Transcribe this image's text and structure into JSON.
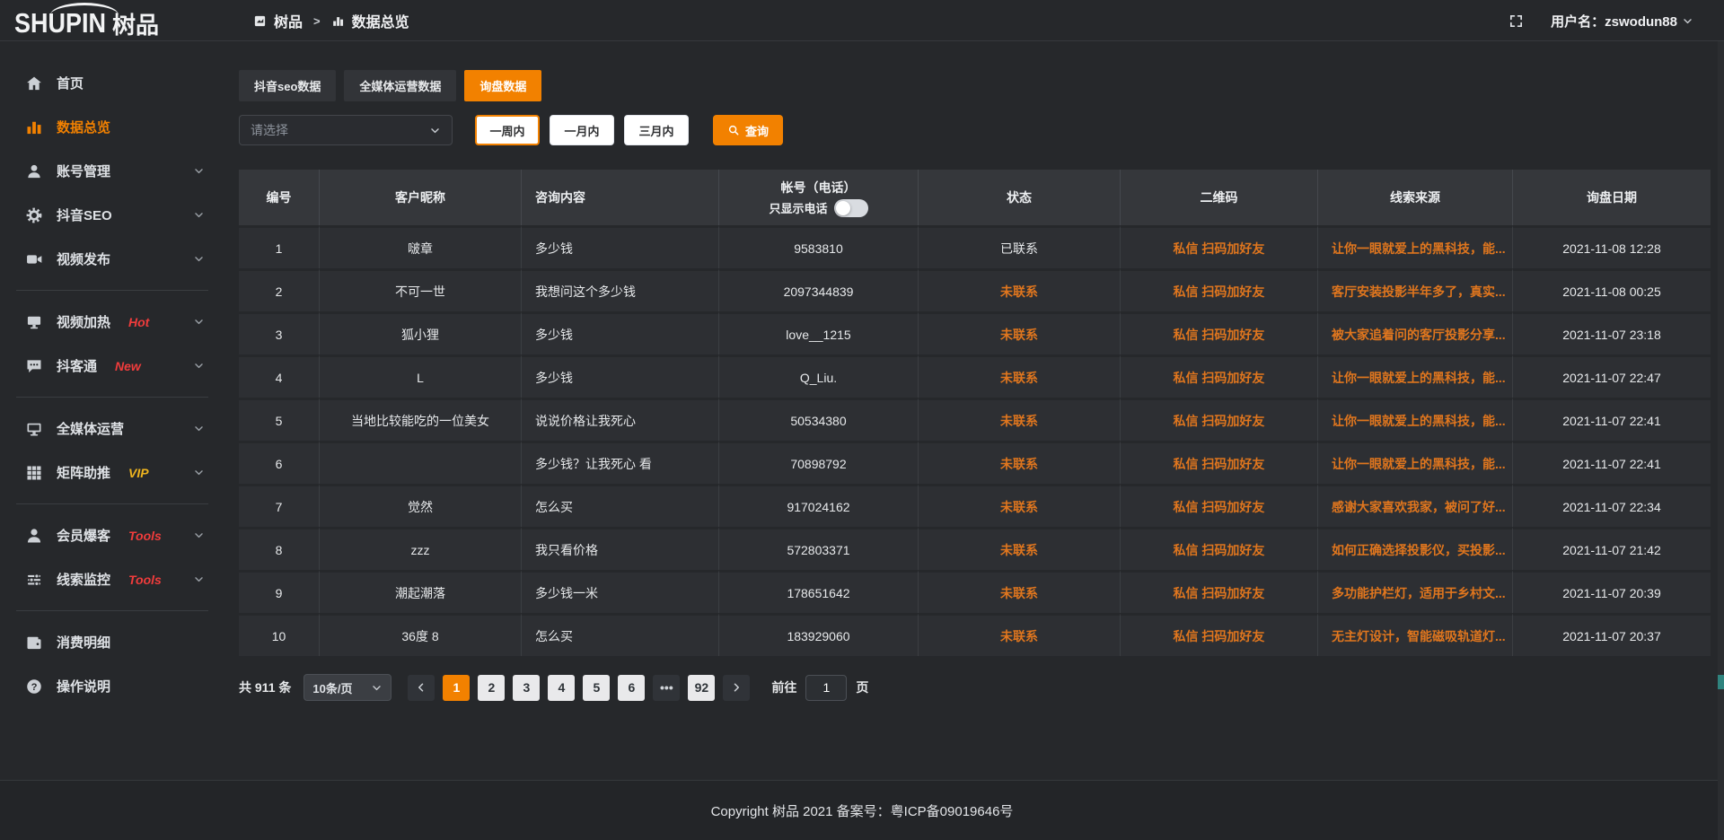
{
  "logo": {
    "latin": "SHUPIN",
    "cjk": "树品"
  },
  "header": {
    "breadcrumb": {
      "app": "树品",
      "separator": ">",
      "page": "数据总览"
    },
    "user_label": "用户名：zswodun88"
  },
  "sidebar": {
    "items": [
      {
        "id": "home",
        "icon": "home",
        "label": "首页"
      },
      {
        "id": "data-overview",
        "icon": "chart",
        "label": "数据总览",
        "active": true
      },
      {
        "id": "account-management",
        "icon": "user",
        "label": "账号管理",
        "chevron": true
      },
      {
        "id": "douyin-seo",
        "icon": "gear",
        "label": "抖音SEO",
        "chevron": true
      },
      {
        "id": "video-publish",
        "icon": "video",
        "label": "视频发布",
        "chevron": true
      },
      {
        "divider": true
      },
      {
        "id": "video-heat",
        "icon": "heat",
        "label": "视频加热",
        "badge": "Hot",
        "badge_style": "red",
        "chevron": true
      },
      {
        "id": "douketong",
        "icon": "chat",
        "label": "抖客通",
        "badge": "New",
        "badge_style": "red",
        "chevron": true
      },
      {
        "divider": true
      },
      {
        "id": "media-operation",
        "icon": "screen",
        "label": "全媒体运营",
        "chevron": true
      },
      {
        "id": "matrix-boost",
        "icon": "grid",
        "label": "矩阵助推",
        "badge": "VIP",
        "badge_style": "gold",
        "chevron": true
      },
      {
        "divider": true
      },
      {
        "id": "member-baoke",
        "icon": "member",
        "label": "会员爆客",
        "badge": "Tools",
        "badge_style": "red",
        "chevron": true
      },
      {
        "id": "lead-monitor",
        "icon": "sliders",
        "label": "线索监控",
        "badge": "Tools",
        "badge_style": "red",
        "chevron": true
      },
      {
        "divider": true
      },
      {
        "id": "consume-detail",
        "icon": "wallet",
        "label": "消费明细"
      },
      {
        "id": "operation-guide",
        "icon": "question",
        "label": "操作说明"
      }
    ]
  },
  "tabs": [
    {
      "label": "抖音seo数据",
      "active": false
    },
    {
      "label": "全媒体运营数据",
      "active": false
    },
    {
      "label": "询盘数据",
      "active": true
    }
  ],
  "filters": {
    "select_placeholder": "请选择",
    "range_buttons": [
      {
        "label": "一周内",
        "active": true
      },
      {
        "label": "一月内",
        "active": false
      },
      {
        "label": "三月内",
        "active": false
      }
    ],
    "search_label": "查询"
  },
  "table": {
    "columns": [
      {
        "label": "编号"
      },
      {
        "label": "客户昵称"
      },
      {
        "label": "咨询内容"
      },
      {
        "label": "帐号（电话）"
      },
      {
        "label": "状态"
      },
      {
        "label": "二维码"
      },
      {
        "label": "线索来源"
      },
      {
        "label": "询盘日期"
      }
    ],
    "phone_toggle_label": "只显示电话",
    "rows": [
      {
        "no": "1",
        "nickname": "啵章",
        "content": "多少钱",
        "account": "9583810",
        "status": "已联系",
        "contacted": true,
        "qr": "私信 扫码加好友",
        "source": "让你一眼就爱上的黑科技，能...",
        "date": "2021-11-08 12:28"
      },
      {
        "no": "2",
        "nickname": "不可一世",
        "content": "我想问这个多少钱",
        "account": "2097344839",
        "status": "未联系",
        "contacted": false,
        "qr": "私信 扫码加好友",
        "source": "客厅安装投影半年多了，真实...",
        "date": "2021-11-08 00:25"
      },
      {
        "no": "3",
        "nickname": "狐小狸",
        "content": "多少钱",
        "account": "love__1215",
        "status": "未联系",
        "contacted": false,
        "qr": "私信 扫码加好友",
        "source": "被大家追着问的客厅投影分享...",
        "date": "2021-11-07 23:18"
      },
      {
        "no": "4",
        "nickname": "L",
        "content": "多少钱",
        "account": "Q_Liu.",
        "status": "未联系",
        "contacted": false,
        "qr": "私信 扫码加好友",
        "source": "让你一眼就爱上的黑科技，能...",
        "date": "2021-11-07 22:47"
      },
      {
        "no": "5",
        "nickname": "当地比较能吃的一位美女",
        "content": "说说价格让我死心",
        "account": "50534380",
        "status": "未联系",
        "contacted": false,
        "qr": "私信 扫码加好友",
        "source": "让你一眼就爱上的黑科技，能...",
        "date": "2021-11-07 22:41"
      },
      {
        "no": "6",
        "nickname": "",
        "content": "多少钱？让我死心 看",
        "account": "70898792",
        "status": "未联系",
        "contacted": false,
        "qr": "私信 扫码加好友",
        "source": "让你一眼就爱上的黑科技，能...",
        "date": "2021-11-07 22:41"
      },
      {
        "no": "7",
        "nickname": "觉然",
        "content": "怎么买",
        "account": "917024162",
        "status": "未联系",
        "contacted": false,
        "qr": "私信 扫码加好友",
        "source": "感谢大家喜欢我家，被问了好...",
        "date": "2021-11-07 22:34"
      },
      {
        "no": "8",
        "nickname": "zzz",
        "content": "我只看价格",
        "account": "572803371",
        "status": "未联系",
        "contacted": false,
        "qr": "私信 扫码加好友",
        "source": "如何正确选择投影仪，买投影...",
        "date": "2021-11-07 21:42"
      },
      {
        "no": "9",
        "nickname": "潮起潮落",
        "content": "多少钱一米",
        "account": "178651642",
        "status": "未联系",
        "contacted": false,
        "qr": "私信 扫码加好友",
        "source": "多功能护栏灯，适用于乡村文...",
        "date": "2021-11-07 20:39"
      },
      {
        "no": "10",
        "nickname": "36度 8",
        "content": "怎么买",
        "account": "183929060",
        "status": "未联系",
        "contacted": false,
        "qr": "私信 扫码加好友",
        "source": "无主灯设计，智能磁吸轨道灯...",
        "date": "2021-11-07 20:37"
      }
    ]
  },
  "pagination": {
    "total_label": "共 911 条",
    "page_size": "10条/页",
    "pages": [
      "1",
      "2",
      "3",
      "4",
      "5",
      "6",
      "•••",
      "92"
    ],
    "active_page": "1",
    "ellipsis": "•••",
    "goto_prefix": "前往",
    "goto_value": "1",
    "goto_suffix": "页"
  },
  "footer": {
    "copyright": "Copyright 树品 2021 备案号：粤ICP备09019646号"
  },
  "colors": {
    "accent": "#f28100",
    "link_orange": "#e0761e",
    "badge_red": "#f03c3c",
    "badge_gold": "#eeb41f"
  }
}
